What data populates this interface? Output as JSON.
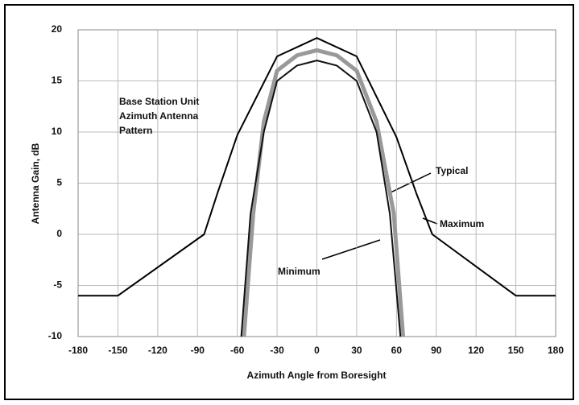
{
  "chart_data": {
    "type": "line",
    "title_lines": [
      "Base Station Unit",
      "Azimuth Antenna",
      "Pattern"
    ],
    "x_label": "Azimuth Angle from Boresight",
    "y_label": "Antenna Gain, dB",
    "xlim": [
      -180,
      180
    ],
    "xticks": [
      -180,
      -150,
      -120,
      -90,
      -60,
      -30,
      0,
      30,
      60,
      90,
      120,
      150,
      180
    ],
    "ylim": [
      -10,
      20
    ],
    "yticks": [
      -10,
      -5,
      0,
      5,
      10,
      15,
      20
    ],
    "grid": true,
    "series": [
      {
        "name": "Maximum",
        "color": "#000000",
        "x": [
          -180,
          -150,
          -85,
          -75,
          -60,
          -30,
          0,
          30,
          60,
          75,
          87,
          150,
          180
        ],
        "values": [
          -6,
          -6,
          0,
          4,
          9.7,
          17.4,
          19.2,
          17.4,
          9.5,
          4,
          0,
          -6,
          -6
        ]
      },
      {
        "name": "Typical",
        "color": "#999999",
        "x": [
          -55,
          -48,
          -40,
          -30,
          -15,
          0,
          15,
          30,
          45,
          58,
          65
        ],
        "values": [
          -10,
          2,
          11,
          16,
          17.5,
          18,
          17.5,
          16,
          11,
          2,
          -10
        ]
      },
      {
        "name": "Minimum",
        "color": "#111111",
        "x": [
          -57,
          -50,
          -40,
          -30,
          -15,
          0,
          15,
          30,
          45,
          55,
          63
        ],
        "values": [
          -10,
          2,
          10,
          15,
          16.5,
          17,
          16.5,
          15,
          10,
          2,
          -10
        ]
      }
    ]
  }
}
